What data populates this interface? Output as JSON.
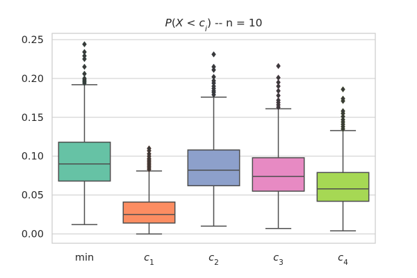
{
  "chart_data": {
    "type": "box",
    "title_parts": [
      {
        "t": "P",
        "it": true
      },
      {
        "t": "(",
        "it": false
      },
      {
        "t": "X",
        "it": true
      },
      {
        "t": " < ",
        "it": false
      },
      {
        "t": "c",
        "it": true
      },
      {
        "t": "i",
        "it": true,
        "sub": true
      },
      {
        "t": ")",
        "it": false
      },
      {
        "t": " -- n = 10",
        "it": false
      }
    ],
    "xlabel": "",
    "ylabel": "",
    "ylim": [
      -0.012,
      0.258
    ],
    "yticks": [
      0.0,
      0.05,
      0.1,
      0.15,
      0.2,
      0.25
    ],
    "ytick_labels": [
      "0.00",
      "0.05",
      "0.10",
      "0.15",
      "0.20",
      "0.25"
    ],
    "grid": true,
    "categories": [
      {
        "base": "min",
        "sub": ""
      },
      {
        "base": "c",
        "sub": "1"
      },
      {
        "base": "c",
        "sub": "2"
      },
      {
        "base": "c",
        "sub": "3"
      },
      {
        "base": "c",
        "sub": "4"
      }
    ],
    "boxes": [
      {
        "q1": 0.068,
        "median": 0.09,
        "q3": 0.118,
        "whisker_low": 0.012,
        "whisker_high": 0.192,
        "outliers": [
          0.194,
          0.196,
          0.198,
          0.2,
          0.206,
          0.215,
          0.225,
          0.229,
          0.234,
          0.244
        ]
      },
      {
        "q1": 0.014,
        "median": 0.025,
        "q3": 0.041,
        "whisker_low": 0.0,
        "whisker_high": 0.081,
        "outliers": [
          0.083,
          0.085,
          0.087,
          0.089,
          0.091,
          0.093,
          0.095,
          0.097,
          0.1,
          0.103,
          0.107,
          0.11
        ]
      },
      {
        "q1": 0.062,
        "median": 0.082,
        "q3": 0.108,
        "whisker_low": 0.01,
        "whisker_high": 0.176,
        "outliers": [
          0.179,
          0.182,
          0.184,
          0.187,
          0.19,
          0.194,
          0.197,
          0.202,
          0.211,
          0.215,
          0.231
        ]
      },
      {
        "q1": 0.055,
        "median": 0.074,
        "q3": 0.098,
        "whisker_low": 0.007,
        "whisker_high": 0.161,
        "outliers": [
          0.163,
          0.166,
          0.169,
          0.172,
          0.178,
          0.184,
          0.19,
          0.195,
          0.201,
          0.216
        ]
      },
      {
        "q1": 0.042,
        "median": 0.058,
        "q3": 0.079,
        "whisker_low": 0.004,
        "whisker_high": 0.133,
        "outliers": [
          0.135,
          0.138,
          0.141,
          0.144,
          0.147,
          0.151,
          0.155,
          0.158,
          0.171,
          0.174,
          0.186
        ]
      }
    ],
    "colors": [
      "#66c2a5",
      "#fc8d62",
      "#8da0cb",
      "#e78ac3",
      "#a6d854"
    ],
    "line_color": "#4d4d4d",
    "grid_color": "#cccccc",
    "spine_color": "#cccccc"
  }
}
